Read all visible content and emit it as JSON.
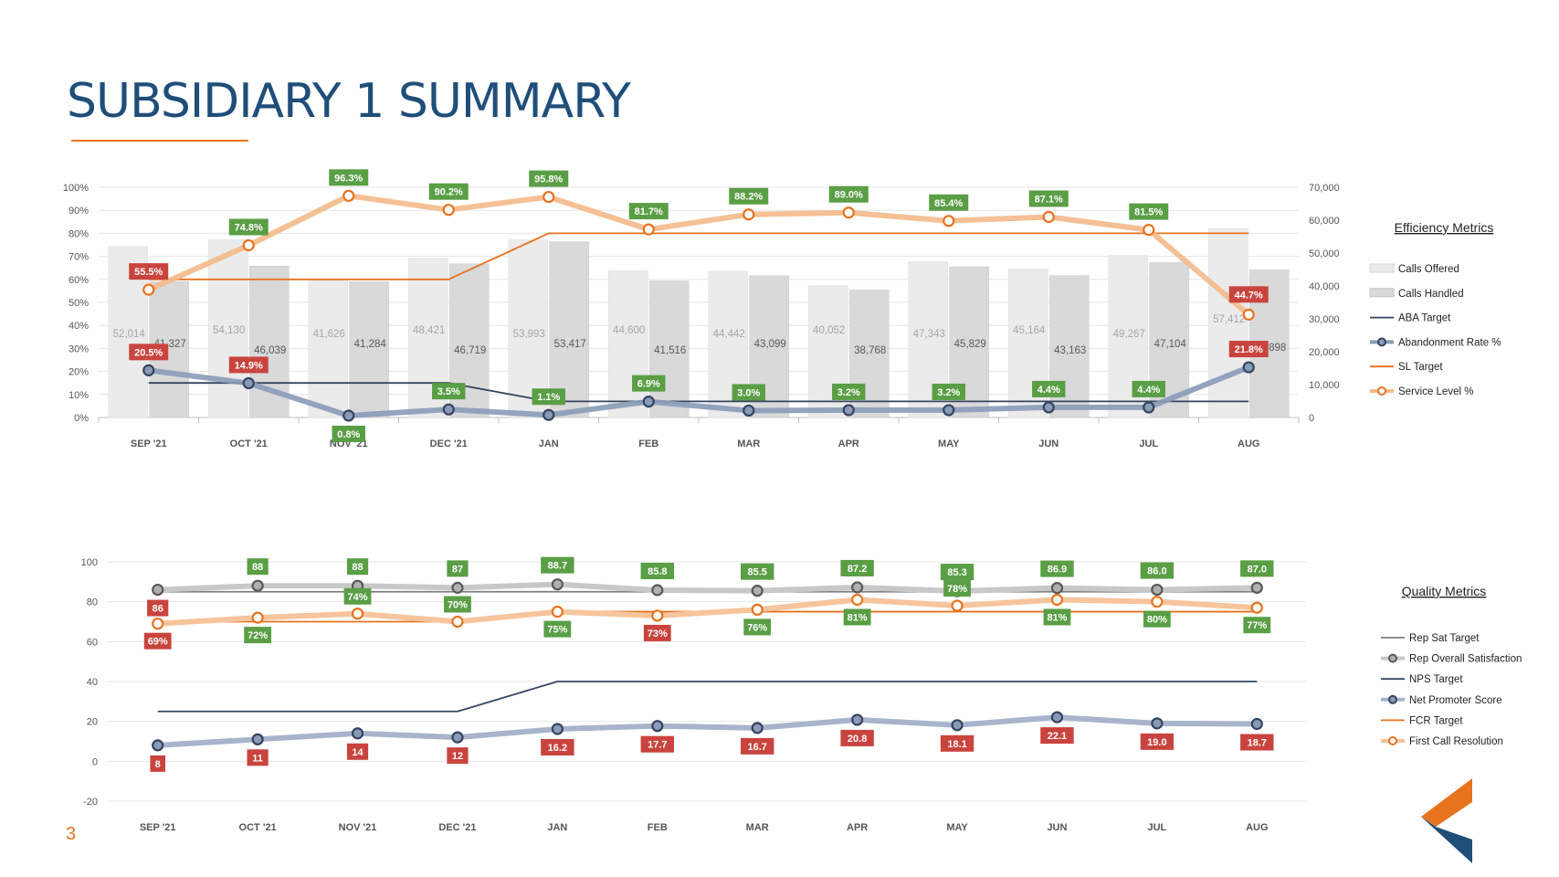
{
  "page": {
    "title": "SUBSIDIARY 1 SUMMARY",
    "page_number": "3",
    "colors": {
      "title": "#1f4e79",
      "accent": "#e8731e",
      "navy": "#354560",
      "steel": "#8a9bb8",
      "label_green": "#5a9e45",
      "label_red": "#c9443e",
      "bar_offered": "#ebebeb",
      "bar_handled": "#d9d9d9"
    },
    "logo_icon": "chevron-logo-icon"
  },
  "chart_data": [
    {
      "type": "bar",
      "legend_title": "Efficiency Metrics",
      "legend_position": "right",
      "categories": [
        "SEP '21",
        "OCT '21",
        "NOV '21",
        "DEC '21",
        "JAN",
        "FEB",
        "MAR",
        "APR",
        "MAY",
        "JUN",
        "JUL",
        "AUG"
      ],
      "y_left": {
        "min": 0,
        "max": 100,
        "ticks": [
          "0%",
          "10%",
          "20%",
          "30%",
          "40%",
          "50%",
          "60%",
          "70%",
          "80%",
          "90%",
          "100%"
        ]
      },
      "y_right": {
        "min": 0,
        "max": 70000,
        "ticks": [
          "0",
          "10,000",
          "20,000",
          "30,000",
          "40,000",
          "50,000",
          "60,000",
          "70,000"
        ]
      },
      "grid": true,
      "series": [
        {
          "name": "Calls Offered",
          "type": "bar",
          "axis": "right",
          "values": [
            52014,
            54130,
            41626,
            48421,
            53993,
            44600,
            44442,
            40052,
            47343,
            45164,
            49267,
            57412
          ],
          "labels": [
            "52,014",
            "54,130",
            "41,626",
            "48,421",
            "53,993",
            "44,600",
            "44,442",
            "40,052",
            "47,343",
            "45,164",
            "49,267",
            "57,412"
          ]
        },
        {
          "name": "Calls Handled",
          "type": "bar",
          "axis": "right",
          "values": [
            41327,
            46039,
            41284,
            46719,
            53417,
            41516,
            43099,
            38768,
            45829,
            43163,
            47104,
            44898
          ],
          "labels": [
            "41,327",
            "46,039",
            "41,284",
            "46,719",
            "53,417",
            "41,516",
            "43,099",
            "38,768",
            "45,829",
            "43,163",
            "47,104",
            "44,898"
          ]
        },
        {
          "name": "ABA Target",
          "type": "line",
          "axis": "left",
          "values": [
            15,
            15,
            15,
            15,
            7,
            7,
            7,
            7,
            7,
            7,
            7,
            7
          ]
        },
        {
          "name": "Abandonment Rate %",
          "type": "line-marker",
          "axis": "left",
          "values": [
            20.5,
            14.9,
            0.8,
            3.5,
            1.1,
            6.9,
            3.0,
            3.2,
            3.2,
            4.4,
            4.4,
            21.8
          ],
          "labels": [
            "20.5%",
            "14.9%",
            "0.8%",
            "3.5%",
            "1.1%",
            "6.9%",
            "3.0%",
            "3.2%",
            "3.2%",
            "4.4%",
            "4.4%",
            "21.8%"
          ],
          "label_status": [
            "red",
            "red",
            "green",
            "green",
            "green",
            "green",
            "green",
            "green",
            "green",
            "green",
            "green",
            "red"
          ]
        },
        {
          "name": "SL Target",
          "type": "line",
          "axis": "left",
          "values": [
            60,
            60,
            60,
            60,
            80,
            80,
            80,
            80,
            80,
            80,
            80,
            80
          ]
        },
        {
          "name": "Service Level %",
          "type": "line-marker",
          "axis": "left",
          "values": [
            55.5,
            74.8,
            96.3,
            90.2,
            95.8,
            81.7,
            88.2,
            89.0,
            85.4,
            87.1,
            81.5,
            44.7
          ],
          "labels": [
            "55.5%",
            "74.8%",
            "96.3%",
            "90.2%",
            "95.8%",
            "81.7%",
            "88.2%",
            "89.0%",
            "85.4%",
            "87.1%",
            "81.5%",
            "44.7%"
          ],
          "label_status": [
            "red",
            "green",
            "green",
            "green",
            "green",
            "green",
            "green",
            "green",
            "green",
            "green",
            "green",
            "red"
          ]
        }
      ]
    },
    {
      "type": "line",
      "legend_title": "Quality Metrics",
      "legend_position": "right",
      "categories": [
        "SEP '21",
        "OCT '21",
        "NOV '21",
        "DEC '21",
        "JAN",
        "FEB",
        "MAR",
        "APR",
        "MAY",
        "JUN",
        "JUL",
        "AUG"
      ],
      "y": {
        "min": -20,
        "max": 100,
        "ticks": [
          "-20",
          "0",
          "20",
          "40",
          "60",
          "80",
          "100"
        ]
      },
      "grid": true,
      "series": [
        {
          "name": "Rep Sat Target",
          "type": "line",
          "values": [
            85,
            85,
            85,
            85,
            85,
            85,
            85,
            85,
            85,
            85,
            85,
            85
          ]
        },
        {
          "name": "Rep Overall Satisfaction",
          "type": "line-marker",
          "values": [
            86,
            88,
            88,
            87,
            88.7,
            85.8,
            85.5,
            87.2,
            85.3,
            86.9,
            86.0,
            87.0
          ],
          "labels": [
            "86",
            "88",
            "88",
            "87",
            "88.7",
            "85.8",
            "85.5",
            "87.2",
            "85.3",
            "86.9",
            "86.0",
            "87.0"
          ],
          "label_status": [
            "red",
            "green",
            "green",
            "green",
            "green",
            "green",
            "green",
            "green",
            "green",
            "green",
            "green",
            "green"
          ]
        },
        {
          "name": "NPS Target",
          "type": "line",
          "values": [
            25,
            25,
            25,
            25,
            40,
            40,
            40,
            40,
            40,
            40,
            40,
            40
          ]
        },
        {
          "name": "Net Promoter Score",
          "type": "line-marker",
          "values": [
            8,
            11,
            14,
            12,
            16.2,
            17.7,
            16.7,
            20.8,
            18.1,
            22.1,
            19.0,
            18.7
          ],
          "labels": [
            "8",
            "11",
            "14",
            "12",
            "16.2",
            "17.7",
            "16.7",
            "20.8",
            "18.1",
            "22.1",
            "19.0",
            "18.7"
          ],
          "label_status": [
            "red",
            "red",
            "red",
            "red",
            "red",
            "red",
            "red",
            "red",
            "red",
            "red",
            "red",
            "red"
          ]
        },
        {
          "name": "FCR Target",
          "type": "line",
          "values": [
            70,
            70,
            70,
            70,
            75,
            75,
            75,
            75,
            75,
            75,
            75,
            75
          ]
        },
        {
          "name": "First Call Resolution",
          "type": "line-marker",
          "values": [
            69,
            72,
            74,
            70,
            75,
            73,
            76,
            81,
            78,
            81,
            80,
            77
          ],
          "labels": [
            "69%",
            "72%",
            "74%",
            "70%",
            "75%",
            "73%",
            "76%",
            "81%",
            "78%",
            "81%",
            "80%",
            "77%"
          ],
          "label_status": [
            "red",
            "green",
            "green",
            "green",
            "green",
            "red",
            "green",
            "green",
            "green",
            "green",
            "green",
            "green"
          ]
        }
      ]
    }
  ]
}
